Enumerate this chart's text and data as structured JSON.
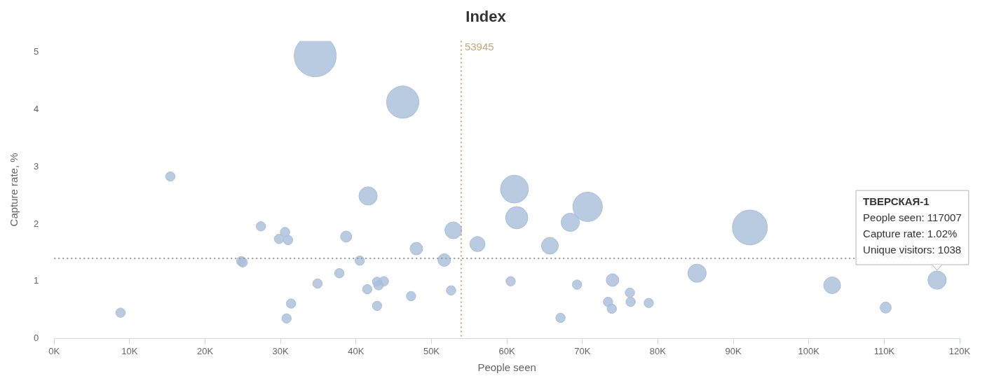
{
  "chart_data": {
    "type": "bubble",
    "title": "Index",
    "xlabel": "People seen",
    "ylabel": "Capture rate, %",
    "color": "#a9bfda",
    "x": [
      8800,
      15400,
      24800,
      25000,
      27400,
      29800,
      30600,
      31000,
      30800,
      31400,
      34900,
      34600,
      38700,
      41600,
      46200,
      40500,
      37800,
      41500,
      42800,
      43000,
      43700,
      42800,
      48000,
      47300,
      51700,
      52900,
      52600,
      56100,
      60500,
      61000,
      61300,
      65700,
      67100,
      68400,
      70700,
      69300,
      74000,
      73400,
      73900,
      76300,
      76400,
      78800,
      85200,
      92200,
      103100,
      110200,
      117007
    ],
    "values": [
      0.45,
      2.83,
      1.35,
      1.33,
      1.96,
      1.74,
      1.86,
      1.72,
      0.35,
      0.61,
      0.96,
      4.94,
      1.78,
      2.49,
      4.13,
      1.36,
      1.14,
      0.86,
      0.99,
      0.93,
      1.0,
      0.57,
      1.57,
      0.74,
      1.37,
      1.89,
      0.84,
      1.65,
      1.0,
      2.61,
      2.11,
      1.62,
      0.36,
      2.03,
      2.3,
      0.94,
      1.02,
      0.64,
      0.52,
      0.8,
      0.64,
      0.62,
      1.14,
      1.94,
      0.93,
      0.54,
      1.02
    ],
    "sizes": [
      0.05,
      0.05,
      0.05,
      0.05,
      0.05,
      0.05,
      0.05,
      0.05,
      0.05,
      0.05,
      0.05,
      1,
      0.07,
      0.19,
      0.59,
      0.05,
      0.05,
      0.05,
      0.05,
      0.05,
      0.05,
      0.05,
      0.09,
      0.05,
      0.09,
      0.16,
      0.05,
      0.13,
      0.05,
      0.44,
      0.28,
      0.16,
      0.05,
      0.19,
      0.49,
      0.05,
      0.09,
      0.05,
      0.05,
      0.05,
      0.05,
      0.05,
      0.19,
      0.69,
      0.16,
      0.07,
      0.19
    ],
    "xlim": [
      0,
      120000
    ],
    "xticks": [
      {
        "value": 0,
        "label": "0K"
      },
      {
        "value": 10000,
        "label": "10K"
      },
      {
        "value": 20000,
        "label": "20K"
      },
      {
        "value": 30000,
        "label": "30K"
      },
      {
        "value": 40000,
        "label": "40K"
      },
      {
        "value": 50000,
        "label": "50K"
      },
      {
        "value": 60000,
        "label": "60K"
      },
      {
        "value": 70000,
        "label": "70K"
      },
      {
        "value": 80000,
        "label": "80K"
      },
      {
        "value": 90000,
        "label": "90K"
      },
      {
        "value": 100000,
        "label": "100K"
      },
      {
        "value": 110000,
        "label": "110K"
      },
      {
        "value": 120000,
        "label": "120K"
      }
    ],
    "ylim": [
      0,
      5.2
    ],
    "yticks": [
      0,
      1,
      2,
      3,
      4,
      5
    ],
    "ref_lines": [
      {
        "axis": "x",
        "value": 53945,
        "label": "53945",
        "color": "#c9a57a",
        "line_style": "dotted"
      },
      {
        "axis": "y",
        "value": 1.4,
        "color": "#999999",
        "line_style": "dotted"
      }
    ],
    "annotations": [
      {
        "text": "ТВЕРСКАЯ-1\nPeople seen: 117007\nCapture rate: 1.02%\nUnique visitors: 1038",
        "x": 117007,
        "y": 1.02
      }
    ],
    "legend": false,
    "grid": false
  }
}
